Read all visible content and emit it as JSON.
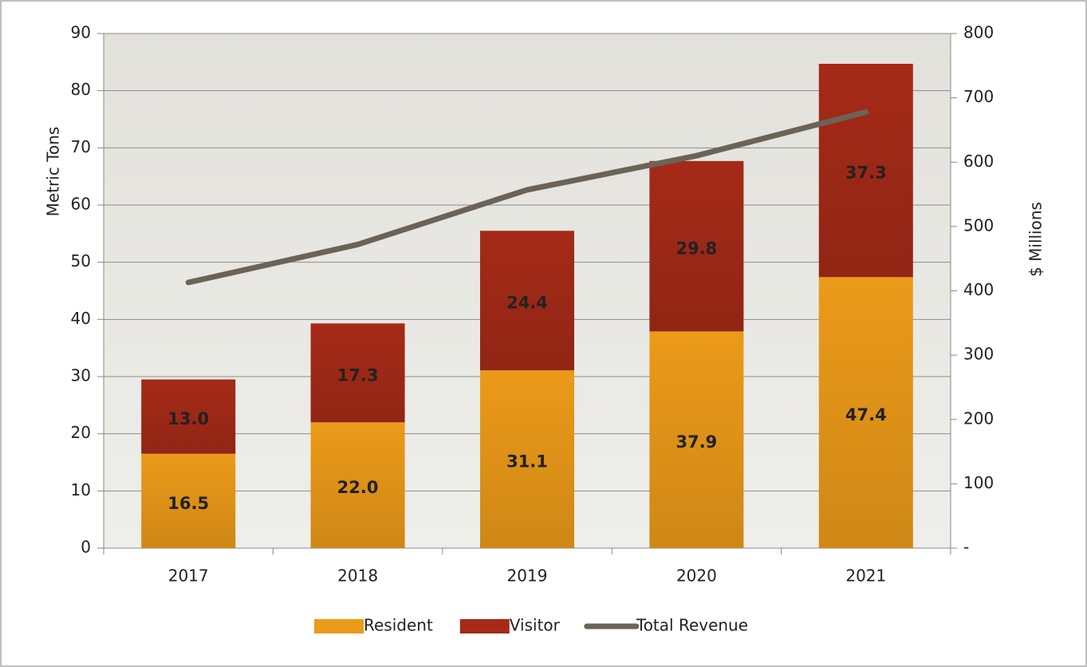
{
  "chart_data": {
    "type": "bar",
    "stacked": true,
    "categories": [
      "2017",
      "2018",
      "2019",
      "2020",
      "2021"
    ],
    "series": [
      {
        "name": "Resident",
        "color": "#eb9a19",
        "label_color": "#1a1a1a",
        "values": [
          16.5,
          22.0,
          31.1,
          37.9,
          47.4
        ],
        "value_labels": [
          "16.5",
          "22.0",
          "31.1",
          "37.9",
          "47.4"
        ]
      },
      {
        "name": "Visitor",
        "color": "#a52a17",
        "label_color": "#ffffff",
        "values": [
          13.0,
          17.3,
          24.4,
          29.8,
          37.3
        ],
        "value_labels": [
          "13.0",
          "17.3",
          "24.4",
          "29.8",
          "37.3"
        ]
      },
      {
        "name": "Total Revenue",
        "type": "line",
        "axis": "y2",
        "color": "#6b6456",
        "values": [
          413,
          472,
          557,
          610,
          678
        ]
      }
    ],
    "ylabel": "Metric Tons",
    "y2label": "$ Millions",
    "ylim": [
      0,
      90
    ],
    "yticks": [
      0,
      10,
      20,
      30,
      40,
      50,
      60,
      70,
      80,
      90
    ],
    "y2lim": [
      0,
      800
    ],
    "y2ticks": [
      {
        "value": 0,
        "label": "-"
      },
      100,
      200,
      300,
      400,
      500,
      600,
      700,
      800
    ],
    "grid": true,
    "legend": "bottom"
  }
}
